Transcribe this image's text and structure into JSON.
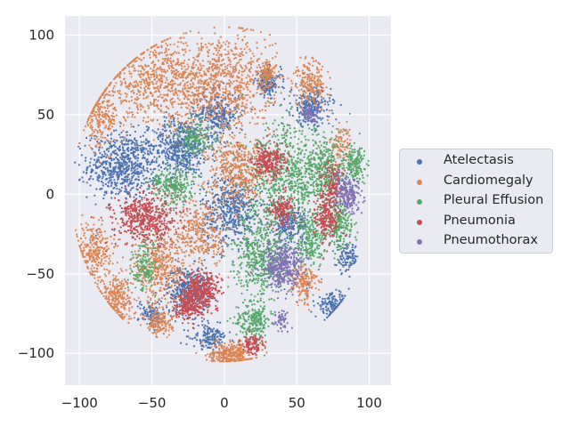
{
  "chart_data": {
    "type": "scatter",
    "title": "",
    "xlabel": "",
    "ylabel": "",
    "xlim": [
      -110,
      115
    ],
    "ylim": [
      -120,
      112
    ],
    "xticks": [
      -100,
      -50,
      0,
      50,
      100
    ],
    "yticks": [
      -100,
      -50,
      0,
      50,
      100
    ],
    "xtick_labels": [
      "−100",
      "−50",
      "0",
      "50",
      "100"
    ],
    "ytick_labels": [
      "−100",
      "−50",
      "0",
      "50",
      "100"
    ],
    "grid": true,
    "legend_position": "right",
    "series": [
      {
        "name": "Atelectasis",
        "color": "#4c72b0",
        "clusters": [
          [
            -70,
            18,
            16,
            14,
            1.3
          ],
          [
            -30,
            30,
            13,
            12,
            1.0
          ],
          [
            -5,
            50,
            10,
            10,
            0.6
          ],
          [
            -25,
            -60,
            10,
            10,
            0.7
          ],
          [
            5,
            -10,
            14,
            15,
            1.0
          ],
          [
            60,
            55,
            9,
            8,
            0.5
          ],
          [
            30,
            70,
            6,
            6,
            0.3
          ],
          [
            75,
            -70,
            8,
            5,
            0.3
          ],
          [
            85,
            -40,
            5,
            6,
            0.2
          ],
          [
            -10,
            -90,
            8,
            5,
            0.3
          ],
          [
            45,
            -20,
            8,
            8,
            0.4
          ],
          [
            -50,
            -75,
            6,
            6,
            0.2
          ]
        ]
      },
      {
        "name": "Cardiomegaly",
        "color": "#dd8452",
        "clusters": [
          [
            -45,
            70,
            25,
            18,
            1.4
          ],
          [
            0,
            70,
            22,
            22,
            1.4
          ],
          [
            -90,
            -35,
            8,
            12,
            0.5
          ],
          [
            -75,
            -65,
            8,
            10,
            0.5
          ],
          [
            -45,
            -45,
            12,
            15,
            0.8
          ],
          [
            -15,
            -25,
            12,
            15,
            0.6
          ],
          [
            10,
            15,
            14,
            14,
            0.9
          ],
          [
            5,
            -100,
            10,
            5,
            0.6
          ],
          [
            -45,
            -80,
            6,
            6,
            0.3
          ],
          [
            60,
            70,
            8,
            10,
            0.4
          ],
          [
            30,
            75,
            5,
            6,
            0.2
          ],
          [
            -85,
            50,
            8,
            14,
            0.5
          ],
          [
            55,
            -55,
            6,
            8,
            0.3
          ],
          [
            80,
            30,
            5,
            10,
            0.2
          ]
        ]
      },
      {
        "name": "Pleural Effusion",
        "color": "#55a868",
        "clusters": [
          [
            45,
            10,
            20,
            22,
            1.4
          ],
          [
            25,
            -40,
            12,
            18,
            0.9
          ],
          [
            70,
            15,
            10,
            14,
            0.6
          ],
          [
            -35,
            5,
            10,
            8,
            0.5
          ],
          [
            -20,
            35,
            8,
            8,
            0.3
          ],
          [
            20,
            -80,
            8,
            8,
            0.4
          ],
          [
            80,
            -20,
            6,
            10,
            0.4
          ],
          [
            -55,
            -45,
            6,
            10,
            0.3
          ],
          [
            90,
            20,
            5,
            8,
            0.3
          ],
          [
            60,
            -30,
            8,
            10,
            0.4
          ]
        ]
      },
      {
        "name": "Pneumonia",
        "color": "#c44e52",
        "clusters": [
          [
            -55,
            -15,
            14,
            10,
            1.0
          ],
          [
            -15,
            -60,
            8,
            8,
            0.7
          ],
          [
            -25,
            -70,
            6,
            6,
            0.4
          ],
          [
            30,
            20,
            8,
            8,
            0.5
          ],
          [
            70,
            -15,
            6,
            10,
            0.4
          ],
          [
            75,
            5,
            5,
            10,
            0.3
          ],
          [
            20,
            -95,
            5,
            4,
            0.2
          ],
          [
            40,
            -10,
            6,
            6,
            0.3
          ]
        ]
      },
      {
        "name": "Pneumothorax",
        "color": "#8172b3",
        "clusters": [
          [
            40,
            -45,
            10,
            10,
            0.8
          ],
          [
            85,
            0,
            6,
            8,
            0.4
          ],
          [
            40,
            -80,
            4,
            4,
            0.1
          ],
          [
            60,
            50,
            4,
            4,
            0.1
          ]
        ]
      }
    ]
  }
}
